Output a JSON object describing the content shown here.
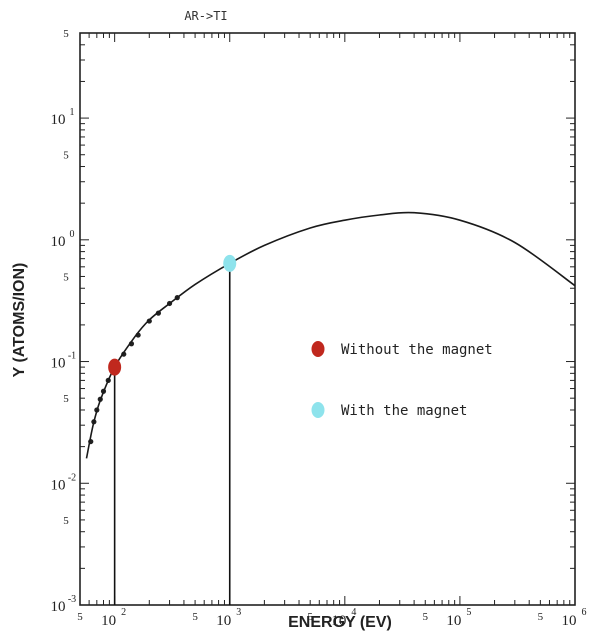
{
  "chart_data": {
    "type": "line",
    "title": "AR->TI",
    "xlabel": "ENERGY (EV)",
    "ylabel": "Y (ATOMS/ION)",
    "x_scale": "log",
    "y_scale": "log",
    "xlim": [
      50,
      1000000
    ],
    "ylim": [
      0.001,
      50
    ],
    "x_ticks": [
      {
        "base": "10",
        "exp": "2",
        "value": 100
      },
      {
        "base": "10",
        "exp": "3",
        "value": 1000
      },
      {
        "base": "10",
        "exp": "4",
        "value": 10000
      },
      {
        "base": "10",
        "exp": "5",
        "value": 100000
      },
      {
        "base": "10",
        "exp": "6",
        "value": 1000000
      }
    ],
    "x_minor_fives": [
      {
        "label": "5",
        "value": 50
      },
      {
        "label": "5",
        "value": 500
      },
      {
        "label": "5",
        "value": 5000
      },
      {
        "label": "5",
        "value": 50000
      },
      {
        "label": "5",
        "value": 500000
      }
    ],
    "y_ticks": [
      {
        "base": "10",
        "exp": "-3",
        "value": 0.001
      },
      {
        "base": "10",
        "exp": "-2",
        "value": 0.01
      },
      {
        "base": "10",
        "exp": "-1",
        "value": 0.1
      },
      {
        "base": "10",
        "exp": "0",
        "value": 1
      },
      {
        "base": "10",
        "exp": "1",
        "value": 10
      }
    ],
    "y_minor_fives": [
      {
        "label": "5",
        "value": 0.005
      },
      {
        "label": "5",
        "value": 0.05
      },
      {
        "label": "5",
        "value": 0.5
      },
      {
        "label": "5",
        "value": 5
      },
      {
        "label": "5",
        "value": 50
      }
    ],
    "series": [
      {
        "values": [
          [
            57,
            0.016
          ],
          [
            65,
            0.03
          ],
          [
            75,
            0.048
          ],
          [
            100,
            0.09
          ],
          [
            150,
            0.16
          ],
          [
            200,
            0.22
          ],
          [
            300,
            0.3
          ],
          [
            500,
            0.43
          ],
          [
            1000,
            0.64
          ],
          [
            2000,
            0.9
          ],
          [
            5000,
            1.25
          ],
          [
            10000,
            1.45
          ],
          [
            20000,
            1.6
          ],
          [
            40000,
            1.67
          ],
          [
            100000,
            1.45
          ],
          [
            300000,
            0.95
          ],
          [
            1000000,
            0.42
          ]
        ]
      }
    ],
    "data_points": [
      [
        62,
        0.022
      ],
      [
        66,
        0.032
      ],
      [
        70,
        0.04
      ],
      [
        75,
        0.049
      ],
      [
        80,
        0.057
      ],
      [
        88,
        0.07
      ],
      [
        95,
        0.083
      ],
      [
        120,
        0.115
      ],
      [
        140,
        0.14
      ],
      [
        160,
        0.165
      ],
      [
        200,
        0.215
      ],
      [
        240,
        0.25
      ],
      [
        300,
        0.3
      ],
      [
        350,
        0.335
      ]
    ],
    "markers": [
      {
        "label": "Without the magnet",
        "x": 100,
        "y": 0.09,
        "color": "#c0281e"
      },
      {
        "label": "With the magnet",
        "x": 1000,
        "y": 0.64,
        "color": "#8ee3ec"
      }
    ],
    "legend": [
      {
        "label": "Without the magnet",
        "color": "#c0281e"
      },
      {
        "label": "With the magnet",
        "color": "#8ee3ec"
      }
    ],
    "legend_placement": "center-right",
    "grid": false
  }
}
